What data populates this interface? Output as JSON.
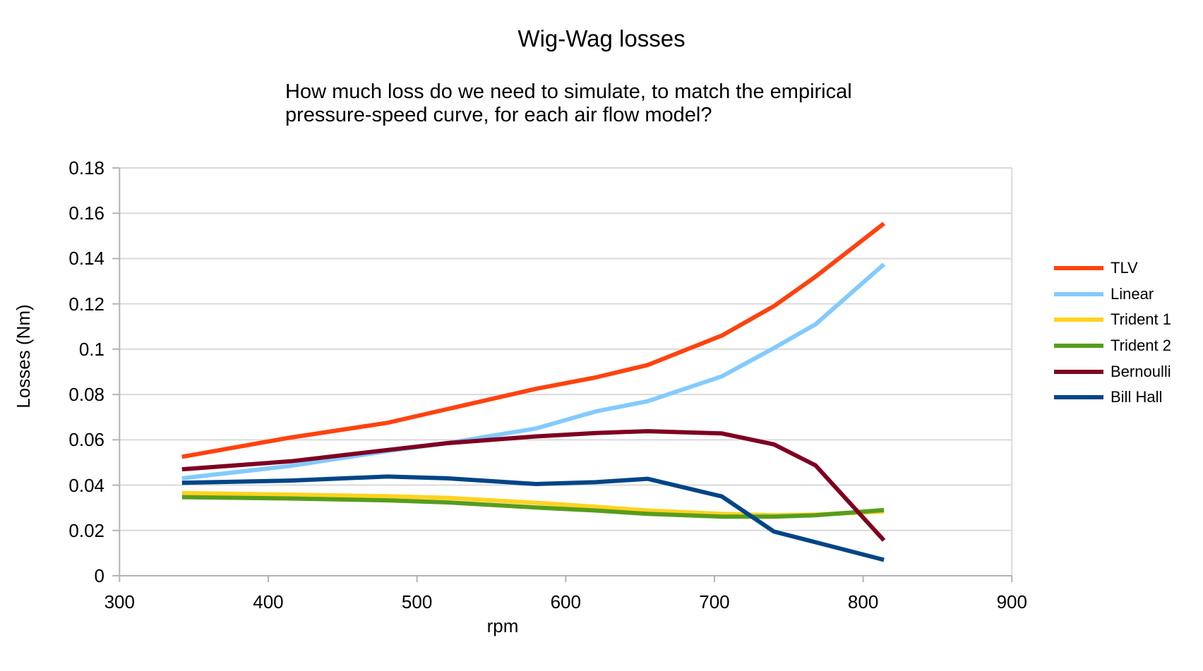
{
  "chart_data": {
    "type": "line",
    "title": "Wig-Wag losses",
    "subtitle": "How much loss do we need to simulate, to match the empirical\npressure-speed curve, for each air flow model?",
    "xlabel": "rpm",
    "ylabel": "Losses (Nm)",
    "xlim": [
      300,
      900
    ],
    "ylim": [
      0,
      0.18
    ],
    "x_tick_labels": [
      "300",
      "400",
      "500",
      "600",
      "700",
      "800",
      "900"
    ],
    "x_tick_values": [
      300,
      400,
      500,
      600,
      700,
      800,
      900
    ],
    "y_tick_labels": [
      "0",
      "0.02",
      "0.04",
      "0.06",
      "0.08",
      "0.1",
      "0.12",
      "0.14",
      "0.16",
      "0.18"
    ],
    "y_tick_values": [
      0,
      0.02,
      0.04,
      0.06,
      0.08,
      0.1,
      0.12,
      0.14,
      0.16,
      0.18
    ],
    "grid": "horizontal-major",
    "legend_position": "right-middle",
    "background_color": "#ffffff",
    "gridline_color": "#d9d9d9",
    "axis_color": "#b3b3b3",
    "text_color": "#000000",
    "x": [
      342,
      415,
      480,
      520,
      580,
      620,
      655,
      705,
      740,
      768,
      814
    ],
    "series": [
      {
        "name": "TLV",
        "color": "#ff420e",
        "values": [
          0.0525,
          0.061,
          0.0675,
          0.0735,
          0.0825,
          0.0875,
          0.093,
          0.106,
          0.119,
          0.132,
          0.1555
        ]
      },
      {
        "name": "Linear",
        "color": "#83caff",
        "values": [
          0.043,
          0.0485,
          0.055,
          0.0585,
          0.065,
          0.0725,
          0.077,
          0.088,
          0.1005,
          0.111,
          0.1375
        ]
      },
      {
        "name": "Trident 1",
        "color": "#ffd320",
        "values": [
          0.0365,
          0.0358,
          0.0351,
          0.0344,
          0.0322,
          0.0305,
          0.0288,
          0.0273,
          0.0267,
          0.027,
          0.0283
        ]
      },
      {
        "name": "Trident 2",
        "color": "#579d1c",
        "values": [
          0.0347,
          0.0341,
          0.0333,
          0.0324,
          0.0301,
          0.0288,
          0.0273,
          0.0261,
          0.0261,
          0.0267,
          0.029
        ]
      },
      {
        "name": "Bernoulli",
        "color": "#7e0021",
        "values": [
          0.047,
          0.0505,
          0.0555,
          0.0585,
          0.0615,
          0.063,
          0.0638,
          0.0628,
          0.058,
          0.0487,
          0.0156
        ]
      },
      {
        "name": "Bill Hall",
        "color": "#004586",
        "values": [
          0.041,
          0.042,
          0.0438,
          0.043,
          0.0405,
          0.0413,
          0.0428,
          0.035,
          0.0195,
          0.0148,
          0.007
        ]
      }
    ]
  }
}
